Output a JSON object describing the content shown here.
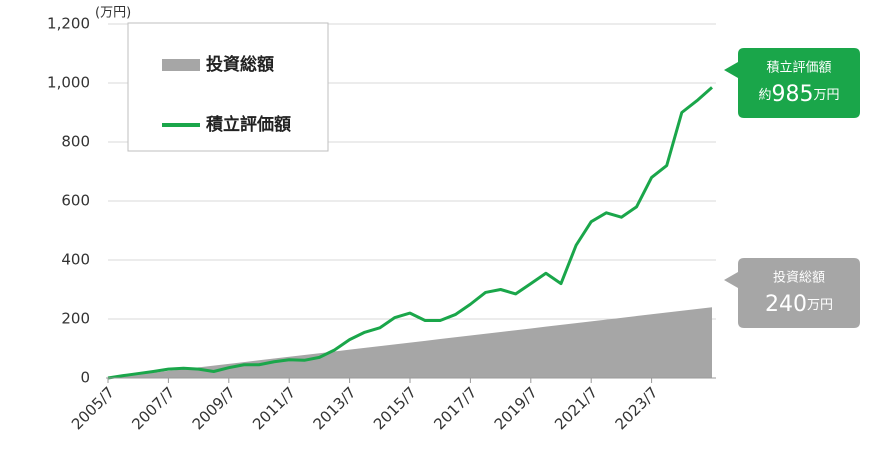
{
  "chart_data": {
    "type": "line",
    "unit_label": "(万円)",
    "x": [
      2005.5,
      2006,
      2006.5,
      2007,
      2007.5,
      2008,
      2008.5,
      2009,
      2009.5,
      2010,
      2010.5,
      2011,
      2011.5,
      2012,
      2012.5,
      2013,
      2013.5,
      2014,
      2014.5,
      2015,
      2015.5,
      2016,
      2016.5,
      2017,
      2017.5,
      2018,
      2018.5,
      2019,
      2019.5,
      2020,
      2020.5,
      2021,
      2021.5,
      2022,
      2022.5,
      2023,
      2023.5,
      2024,
      2024.5,
      2025,
      2025.5
    ],
    "series": [
      {
        "name": "投資総額",
        "color": "#a6a6a6",
        "style": "area",
        "values": [
          0,
          6,
          12,
          18,
          24,
          30,
          36,
          42,
          48,
          54,
          60,
          66,
          72,
          78,
          84,
          90,
          96,
          102,
          108,
          114,
          120,
          126,
          132,
          138,
          144,
          150,
          156,
          162,
          168,
          174,
          180,
          186,
          192,
          198,
          204,
          210,
          216,
          222,
          228,
          234,
          240
        ]
      },
      {
        "name": "積立評価額",
        "color": "#1aa64a",
        "style": "line",
        "values": [
          0,
          8,
          15,
          22,
          30,
          33,
          30,
          22,
          35,
          45,
          45,
          55,
          62,
          60,
          70,
          95,
          130,
          155,
          170,
          205,
          220,
          195,
          195,
          215,
          250,
          290,
          300,
          285,
          320,
          355,
          320,
          450,
          530,
          560,
          545,
          580,
          680,
          720,
          900,
          940,
          985
        ]
      }
    ],
    "xlim": [
      2005.5,
      2025.5
    ],
    "xticks": [
      {
        "value": 2005.5,
        "label": "2005/7"
      },
      {
        "value": 2007.5,
        "label": "2007/7"
      },
      {
        "value": 2009.5,
        "label": "2009/7"
      },
      {
        "value": 2011.5,
        "label": "2011/7"
      },
      {
        "value": 2013.5,
        "label": "2013/7"
      },
      {
        "value": 2015.5,
        "label": "2015/7"
      },
      {
        "value": 2017.5,
        "label": "2017/7"
      },
      {
        "value": 2019.5,
        "label": "2019/7"
      },
      {
        "value": 2021.5,
        "label": "2021/7"
      },
      {
        "value": 2023.5,
        "label": "2023/7"
      }
    ],
    "ylim": [
      0,
      1200
    ],
    "yticks": [
      0,
      200,
      400,
      600,
      800,
      {
        "value": 1000,
        "label": "1,000"
      },
      {
        "value": 1200,
        "label": "1,200"
      }
    ],
    "grid": true,
    "annotations": [
      {
        "title": "積立評価額",
        "prefix": "約",
        "number": "985",
        "unit": "万円",
        "color": "#1aa64a"
      },
      {
        "title": "投資総額",
        "number": "240",
        "unit": "万円",
        "color": "#a6a6a6"
      }
    ]
  }
}
